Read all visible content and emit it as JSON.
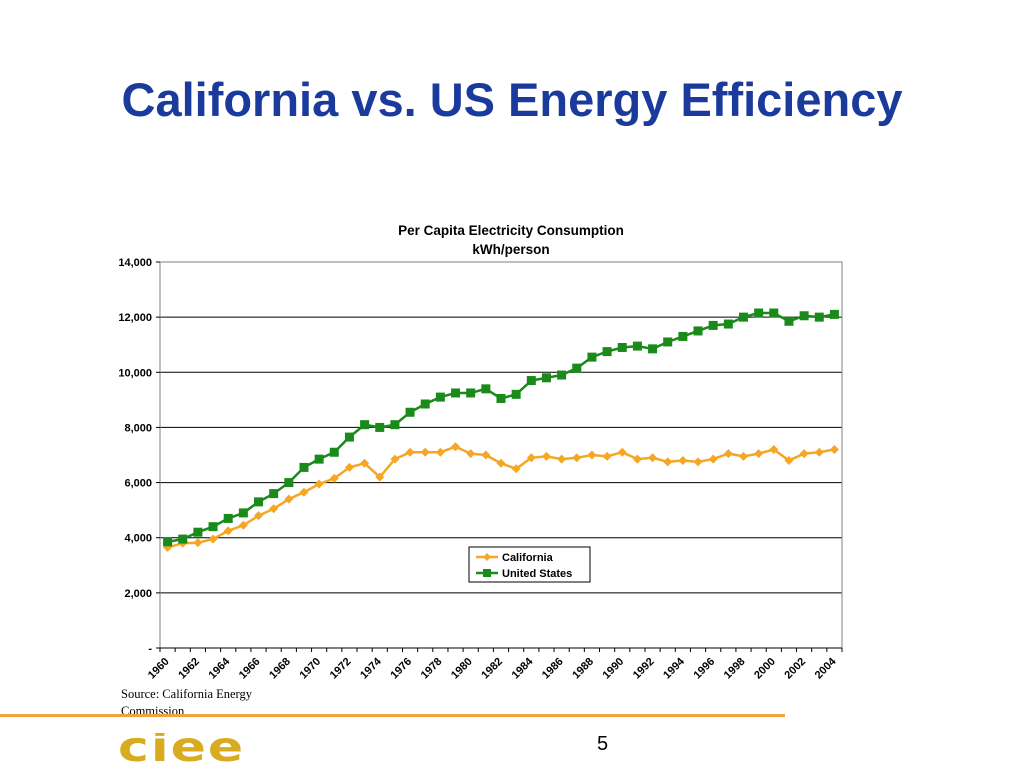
{
  "slide": {
    "title": "California vs. US Energy Efficiency",
    "source": "Source: California Energy Commission",
    "page_number": "5",
    "logo_text": "ciee",
    "accent_color": "#f2a33a",
    "title_color": "#1a3a9c"
  },
  "chart_data": {
    "type": "line",
    "title": "Per Capita Electricity Consumption",
    "subtitle": "kWh/person",
    "xlabel": "",
    "ylabel": "",
    "x": [
      1960,
      1961,
      1962,
      1963,
      1964,
      1965,
      1966,
      1967,
      1968,
      1969,
      1970,
      1971,
      1972,
      1973,
      1974,
      1975,
      1976,
      1977,
      1978,
      1979,
      1980,
      1981,
      1982,
      1983,
      1984,
      1985,
      1986,
      1987,
      1988,
      1989,
      1990,
      1991,
      1992,
      1993,
      1994,
      1995,
      1996,
      1997,
      1998,
      1999,
      2000,
      2001,
      2002,
      2003,
      2004
    ],
    "x_tick_labels": [
      "1960",
      "1962",
      "1964",
      "1966",
      "1968",
      "1970",
      "1972",
      "1974",
      "1976",
      "1978",
      "1980",
      "1982",
      "1984",
      "1986",
      "1988",
      "1990",
      "1992",
      "1994",
      "1996",
      "1998",
      "2000",
      "2002",
      "2004"
    ],
    "y_tick_labels": [
      "-",
      "2,000",
      "4,000",
      "6,000",
      "8,000",
      "10,000",
      "12,000",
      "14,000"
    ],
    "ylim": [
      0,
      14000
    ],
    "grid": "horizontal",
    "legend_position": "center-bottom",
    "series": [
      {
        "name": "California",
        "color": "#f5a623",
        "marker": "diamond",
        "values": [
          3650,
          3800,
          3820,
          3950,
          4250,
          4450,
          4800,
          5050,
          5400,
          5650,
          5950,
          6150,
          6550,
          6700,
          6200,
          6850,
          7100,
          7100,
          7100,
          7300,
          7050,
          7000,
          6700,
          6500,
          6900,
          6950,
          6850,
          6900,
          7000,
          6950,
          7100,
          6850,
          6900,
          6750,
          6800,
          6750,
          6850,
          7050,
          6950,
          7050,
          7200,
          6800,
          7050,
          7100,
          7200
        ]
      },
      {
        "name": "United States",
        "color": "#1a8a1a",
        "marker": "square",
        "values": [
          3850,
          3950,
          4200,
          4400,
          4700,
          4900,
          5300,
          5600,
          6000,
          6550,
          6850,
          7100,
          7650,
          8100,
          8000,
          8100,
          8550,
          8850,
          9100,
          9250,
          9250,
          9400,
          9050,
          9200,
          9700,
          9800,
          9900,
          10150,
          10550,
          10750,
          10900,
          10950,
          10850,
          11100,
          11300,
          11500,
          11700,
          11750,
          12000,
          12150,
          12150,
          11850,
          12050,
          12000,
          12100
        ]
      }
    ]
  }
}
